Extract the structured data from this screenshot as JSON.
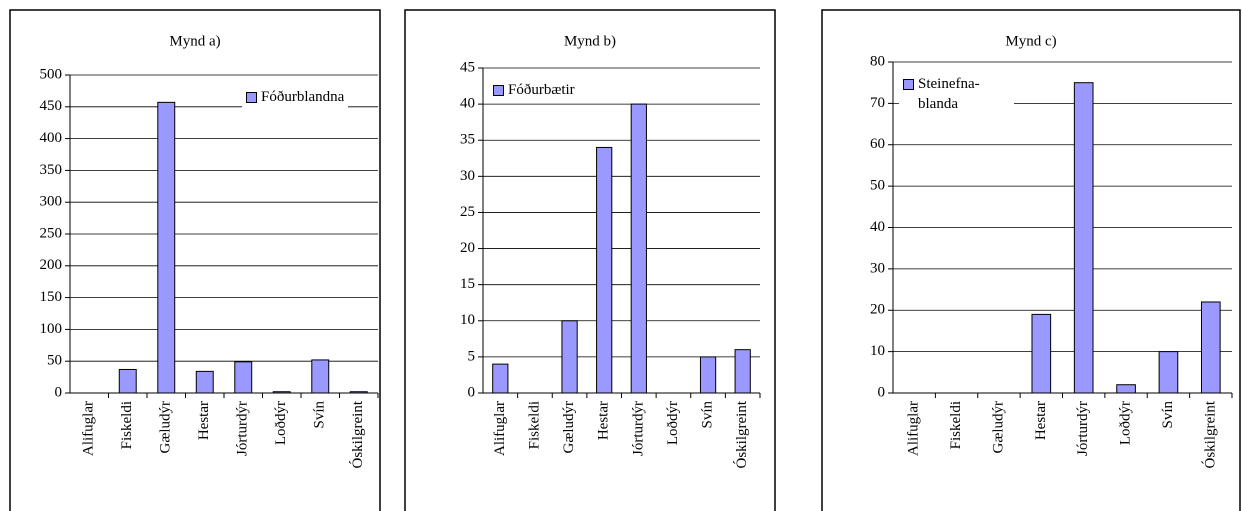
{
  "chart_data": [
    {
      "type": "bar",
      "title": "Mynd a)",
      "categories": [
        "Alifuglar",
        "Fiskeldi",
        "Gæludýr",
        "Hestar",
        "Jórturdýr",
        "Loðdýr",
        "Svín",
        "Óskilgreint"
      ],
      "series": [
        {
          "name": "Fóðurblandna",
          "color": "#9999ff",
          "values": [
            0,
            37,
            457,
            34,
            49,
            2,
            52,
            2
          ]
        }
      ],
      "ylim": [
        0,
        500
      ],
      "yticks": [
        0,
        50,
        100,
        150,
        200,
        250,
        300,
        350,
        400,
        450,
        500
      ],
      "grid": true,
      "legend": "upper right"
    },
    {
      "type": "bar",
      "title": "Mynd b)",
      "categories": [
        "Alifuglar",
        "Fiskeldi",
        "Gæludýr",
        "Hestar",
        "Jórturdýr",
        "Loðdýr",
        "Svín",
        "Óskilgreint"
      ],
      "series": [
        {
          "name": "Fóðurbætir",
          "color": "#9999ff",
          "values": [
            4,
            0,
            10,
            34,
            40,
            0,
            5,
            6
          ]
        }
      ],
      "ylim": [
        0,
        45
      ],
      "yticks": [
        0,
        5,
        10,
        15,
        20,
        25,
        30,
        35,
        40,
        45
      ],
      "grid": true,
      "legend": "upper left"
    },
    {
      "type": "bar",
      "title": "Mynd c)",
      "categories": [
        "Alifuglar",
        "Fiskeldi",
        "Gæludýr",
        "Hestar",
        "Jórturdýr",
        "Loðdýr",
        "Svín",
        "Óskilgreint"
      ],
      "series": [
        {
          "name": "Steinefna-blanda",
          "color": "#9999ff",
          "values": [
            0,
            0,
            0,
            19,
            75,
            2,
            10,
            22
          ]
        }
      ],
      "ylim": [
        0,
        80
      ],
      "yticks": [
        0,
        10,
        20,
        30,
        40,
        50,
        60,
        70,
        80
      ],
      "grid": true,
      "legend": "upper left"
    }
  ]
}
